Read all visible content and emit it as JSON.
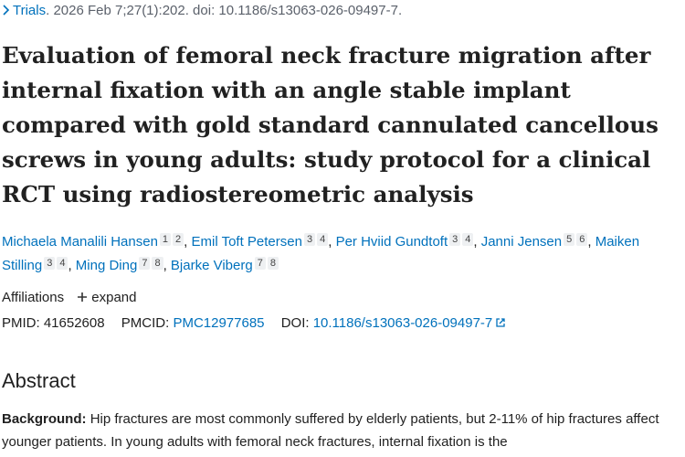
{
  "citation": {
    "journal": "Trials",
    "details": ". 2026 Feb 7;27(1):202. doi: 10.1186/s13063-026-09497-7."
  },
  "title": "Evaluation of femoral neck fracture migration after internal fixation with an angle stable implant compared with gold standard cannulated cancellous screws in young adults: study protocol for a clinical RCT using radiostereometric analysis",
  "authors": {
    "separator": ",",
    "list": [
      {
        "name": "Michaela Manalili Hansen",
        "affiliations": [
          "1",
          "2"
        ]
      },
      {
        "name": "Emil Toft Petersen",
        "affiliations": [
          "3",
          "4"
        ]
      },
      {
        "name": "Per Hviid Gundtoft",
        "affiliations": [
          "3",
          "4"
        ]
      },
      {
        "name": "Janni Jensen",
        "affiliations": [
          "5",
          "6"
        ]
      },
      {
        "name": "Maiken Stilling",
        "affiliations": [
          "3",
          "4"
        ]
      },
      {
        "name": "Ming Ding",
        "affiliations": [
          "7",
          "8"
        ]
      },
      {
        "name": "Bjarke Viberg",
        "affiliations": [
          "7",
          "8"
        ]
      }
    ]
  },
  "affiliations": {
    "label": "Affiliations",
    "expand": "expand"
  },
  "identifiers": {
    "pmid_label": "PMID:",
    "pmid": "41652608",
    "pmcid_label": "PMCID:",
    "pmcid": "PMC12977685",
    "doi_label": "DOI:",
    "doi": "10.1186/s13063-026-09497-7"
  },
  "abstract": {
    "heading": "Abstract",
    "background_label": "Background:",
    "background_text": "Hip fractures are most commonly suffered by elderly patients, but 2-11% of hip fractures affect younger patients. In young adults with femoral neck fractures, internal fixation is the"
  }
}
